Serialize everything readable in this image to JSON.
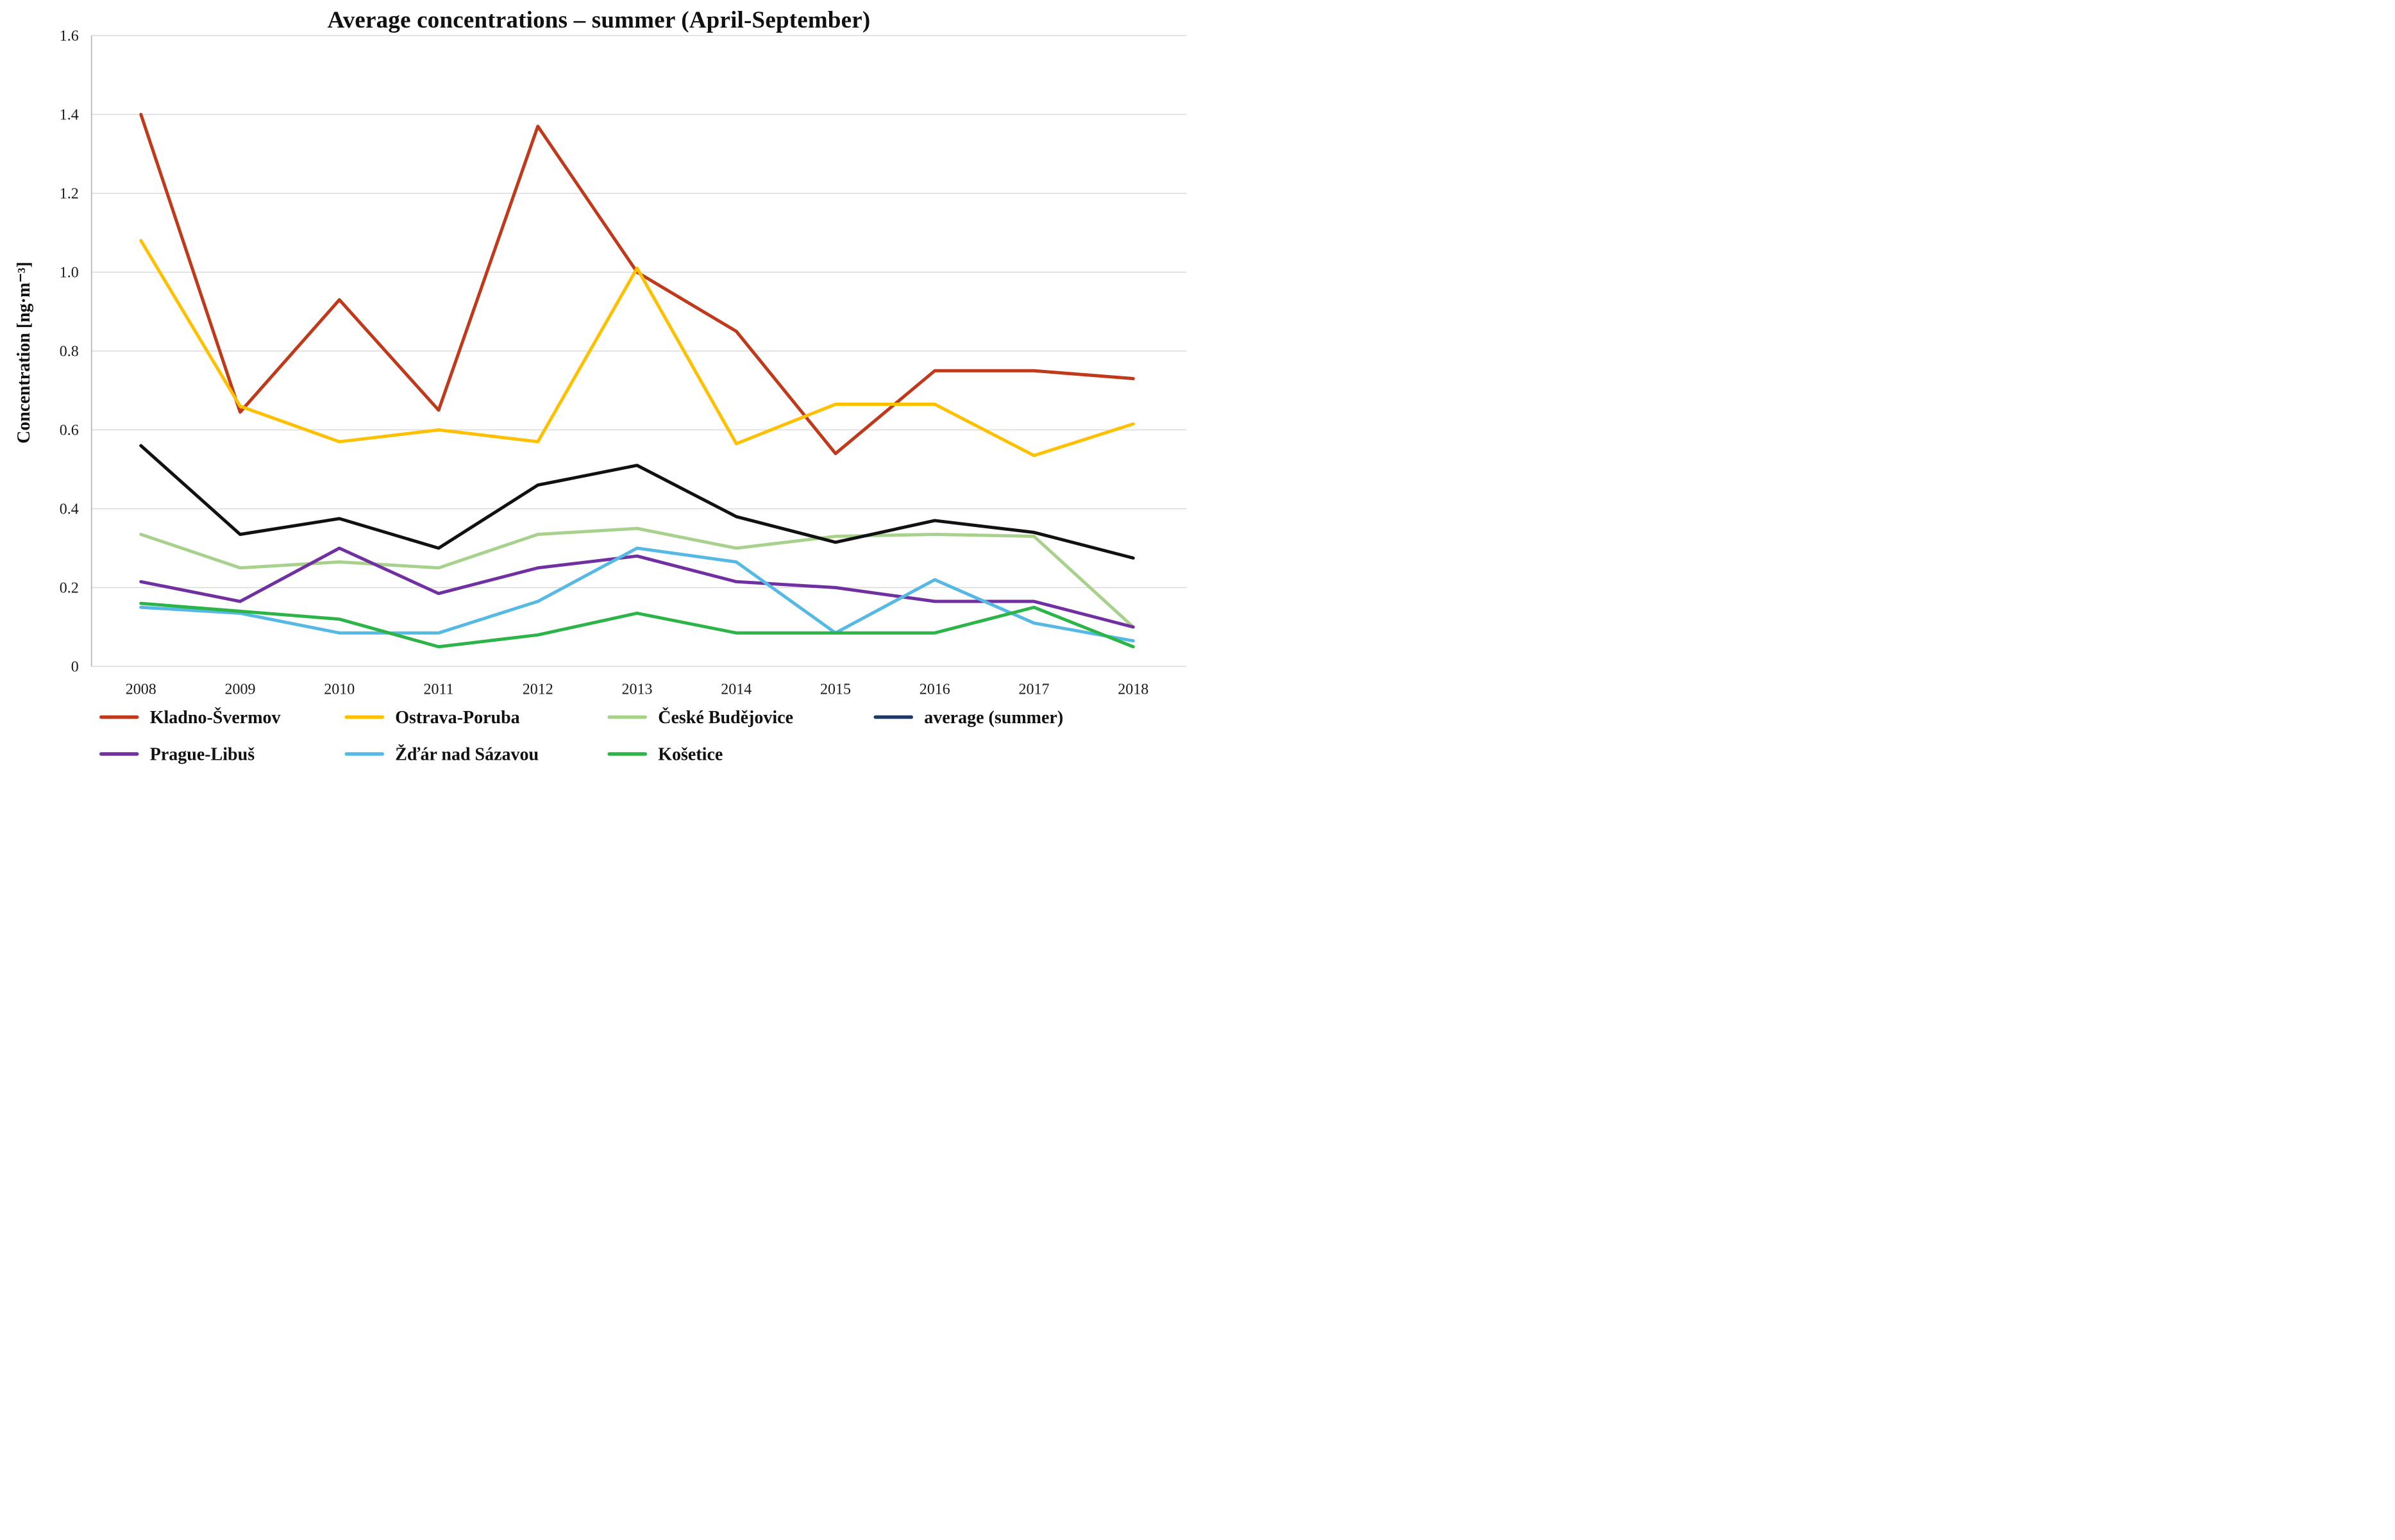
{
  "chart_data": {
    "type": "line",
    "title": "Average concentrations – summer (April-September)",
    "ylabel": "Concentration [ng·m⁻³]",
    "xlabel": "",
    "categories": [
      "2008",
      "2009",
      "2010",
      "2011",
      "2012",
      "2013",
      "2014",
      "2015",
      "2016",
      "2017",
      "2018"
    ],
    "ylim": [
      0,
      1.6
    ],
    "ytick_labels": [
      "0",
      "0.2",
      "0.4",
      "0.6",
      "0.8",
      "1.0",
      "1.2",
      "1.4",
      "1.6"
    ],
    "grid": true,
    "legend_position": "bottom",
    "axis_color": "#bfbfbf",
    "gridline_color": "#d9d9d9",
    "tick_label_color": "#1a1a1a",
    "series": [
      {
        "name": "Kladno-Švermov",
        "color": "#c0391b",
        "legend_color": "#c0391b",
        "values": [
          1.4,
          0.645,
          0.93,
          0.65,
          1.37,
          1.0,
          0.85,
          0.54,
          0.75,
          0.75,
          0.73
        ]
      },
      {
        "name": "Ostrava-Poruba",
        "color": "#ffc000",
        "legend_color": "#ffc000",
        "values": [
          1.08,
          0.66,
          0.57,
          0.6,
          0.57,
          1.01,
          0.565,
          0.665,
          0.665,
          0.535,
          0.615
        ]
      },
      {
        "name": "České Budějovice",
        "color": "#a9d18e",
        "legend_color": "#a9d18e",
        "values": [
          0.335,
          0.25,
          0.265,
          0.25,
          0.335,
          0.35,
          0.3,
          0.33,
          0.335,
          0.33,
          0.1
        ]
      },
      {
        "name": "average (summer)",
        "color": "#111111",
        "legend_color": "#1f3864",
        "values": [
          0.56,
          0.335,
          0.375,
          0.3,
          0.46,
          0.51,
          0.38,
          0.315,
          0.37,
          0.34,
          0.275
        ]
      },
      {
        "name": "Prague-Libuš",
        "color": "#7030a0",
        "legend_color": "#7030a0",
        "values": [
          0.215,
          0.165,
          0.3,
          0.185,
          0.25,
          0.28,
          0.215,
          0.2,
          0.165,
          0.165,
          0.1
        ]
      },
      {
        "name": "Žďár nad Sázavou",
        "color": "#56b9e4",
        "legend_color": "#56b9e4",
        "values": [
          0.15,
          0.135,
          0.085,
          0.085,
          0.165,
          0.3,
          0.265,
          0.085,
          0.22,
          0.11,
          0.065
        ]
      },
      {
        "name": "Košetice",
        "color": "#2db449",
        "legend_color": "#2db449",
        "values": [
          0.16,
          0.14,
          0.12,
          0.05,
          0.08,
          0.135,
          0.085,
          0.085,
          0.085,
          0.15,
          0.05
        ]
      }
    ]
  }
}
